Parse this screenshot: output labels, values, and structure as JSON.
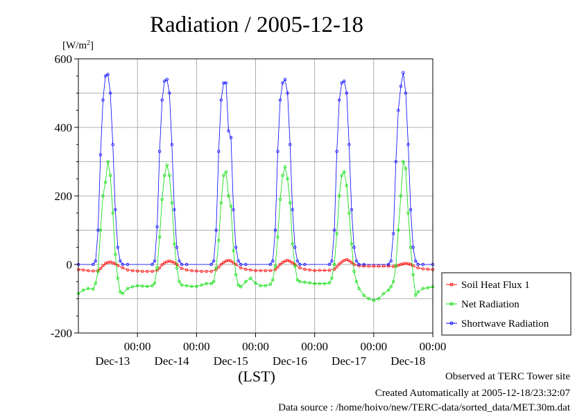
{
  "chart_data": {
    "type": "line",
    "title": "Radiation / 2005-12-18",
    "ylabel": "[W/m2]",
    "ylabel_base": "[W/m",
    "ylabel_sup": "2",
    "ylabel_end": "]",
    "xlabel": "(LST)",
    "ylim": [
      -200,
      600
    ],
    "xlim": [
      0,
      144
    ],
    "yticks": [
      {
        "value": -200,
        "label": "-200"
      },
      {
        "value": 0,
        "label": "0"
      },
      {
        "value": 200,
        "label": "200"
      },
      {
        "value": 400,
        "label": "400"
      },
      {
        "value": 600,
        "label": "600"
      }
    ],
    "xticks": [
      {
        "hour": 24,
        "time": "00:00",
        "date": "Dec-13"
      },
      {
        "hour": 48,
        "time": "00:00",
        "date": "Dec-14"
      },
      {
        "hour": 72,
        "time": "00:00",
        "date": "Dec-15"
      },
      {
        "hour": 96,
        "time": "00:00",
        "date": "Dec-16"
      },
      {
        "hour": 120,
        "time": "00:00",
        "date": "Dec-17"
      },
      {
        "hour": 144,
        "time": "00:00",
        "date": "Dec-18"
      }
    ],
    "grid": true,
    "legend_position": "right",
    "series": [
      {
        "name": "Soil Heat Flux 1",
        "color": "#ff0000",
        "x": [
          0,
          2,
          4,
          6,
          8,
          9,
          10,
          11,
          12,
          13,
          14,
          15,
          16,
          18,
          20,
          22,
          24,
          26,
          28,
          30,
          32,
          33,
          34,
          35,
          36,
          37,
          38,
          39,
          40,
          42,
          44,
          46,
          48,
          50,
          52,
          54,
          56,
          57,
          58,
          59,
          60,
          61,
          62,
          63,
          64,
          66,
          68,
          70,
          72,
          74,
          76,
          78,
          80,
          81,
          82,
          83,
          84,
          85,
          86,
          87,
          88,
          90,
          92,
          94,
          96,
          98,
          100,
          102,
          104,
          105,
          106,
          107,
          108,
          109,
          110,
          111,
          112,
          114,
          116,
          118,
          120,
          122,
          124,
          126,
          128,
          129,
          130,
          131,
          132,
          133,
          134,
          135,
          136,
          138,
          140,
          142,
          144
        ],
        "y": [
          -15,
          -16,
          -18,
          -19,
          -18,
          -12,
          -4,
          3,
          6,
          7,
          5,
          2,
          -3,
          -10,
          -16,
          -18,
          -19,
          -20,
          -20,
          -20,
          -17,
          -10,
          -1,
          5,
          8,
          10,
          8,
          5,
          0,
          -12,
          -16,
          -18,
          -19,
          -20,
          -20,
          -20,
          -15,
          -8,
          0,
          6,
          10,
          12,
          10,
          5,
          0,
          -10,
          -14,
          -16,
          -18,
          -18,
          -18,
          -18,
          -15,
          -8,
          0,
          6,
          10,
          12,
          9,
          5,
          0,
          -10,
          -14,
          -16,
          -18,
          -17,
          -17,
          -17,
          -14,
          -7,
          1,
          7,
          12,
          14,
          11,
          6,
          0,
          -4,
          -5,
          -5,
          -5,
          -5,
          -5,
          -5,
          -6,
          -5,
          -3,
          0,
          2,
          3,
          2,
          0,
          -4,
          -10,
          -13,
          -14,
          -15
        ]
      },
      {
        "name": "Net Radiation",
        "color": "#00dd00",
        "x": [
          0,
          2,
          4,
          6,
          7,
          8,
          9,
          10,
          11,
          12,
          13,
          14,
          15,
          16,
          17,
          18,
          20,
          22,
          24,
          26,
          28,
          30,
          31,
          32,
          33,
          34,
          35,
          36,
          37,
          38,
          39,
          40,
          41,
          42,
          44,
          46,
          48,
          50,
          52,
          54,
          55,
          56,
          57,
          58,
          59,
          60,
          61,
          62,
          63,
          64,
          65,
          66,
          68,
          70,
          72,
          74,
          76,
          78,
          79,
          80,
          81,
          82,
          83,
          84,
          85,
          86,
          87,
          88,
          89,
          90,
          92,
          94,
          96,
          98,
          100,
          102,
          103,
          104,
          105,
          106,
          107,
          108,
          109,
          110,
          111,
          112,
          113,
          114,
          116,
          118,
          120,
          122,
          124,
          126,
          127,
          128,
          129,
          130,
          131,
          132,
          133,
          134,
          135,
          136,
          137,
          138,
          140,
          142,
          144
        ],
        "y": [
          -85,
          -75,
          -70,
          -72,
          -55,
          -20,
          100,
          200,
          240,
          300,
          260,
          150,
          30,
          -40,
          -80,
          -85,
          -70,
          -65,
          -62,
          -63,
          -64,
          -62,
          -55,
          -10,
          80,
          190,
          260,
          290,
          260,
          180,
          60,
          -10,
          -50,
          -60,
          -62,
          -64,
          -64,
          -60,
          -56,
          -56,
          -50,
          -10,
          70,
          180,
          260,
          270,
          200,
          170,
          40,
          -30,
          -60,
          -65,
          -50,
          -40,
          -55,
          -62,
          -62,
          -58,
          -45,
          -5,
          80,
          190,
          260,
          285,
          250,
          180,
          60,
          -5,
          -45,
          -50,
          -52,
          -54,
          -56,
          -56,
          -56,
          -54,
          -40,
          0,
          90,
          200,
          260,
          270,
          230,
          150,
          60,
          -20,
          -50,
          -70,
          -90,
          -100,
          -105,
          -100,
          -85,
          -75,
          -65,
          -50,
          -5,
          100,
          200,
          300,
          280,
          150,
          50,
          -30,
          -90,
          -80,
          -70,
          -68,
          -65
        ]
      },
      {
        "name": "Shortwave Radiation",
        "color": "#0000ff",
        "x": [
          0,
          6,
          7,
          8,
          9,
          10,
          11,
          12,
          13,
          14,
          15,
          16,
          17,
          18,
          20,
          30,
          31,
          32,
          33,
          34,
          35,
          36,
          37,
          38,
          39,
          40,
          41,
          42,
          44,
          54,
          55,
          56,
          57,
          58,
          59,
          60,
          61,
          62,
          63,
          64,
          65,
          66,
          68,
          78,
          79,
          80,
          81,
          82,
          83,
          84,
          85,
          86,
          87,
          88,
          89,
          90,
          92,
          102,
          103,
          104,
          105,
          106,
          107,
          108,
          109,
          110,
          111,
          112,
          113,
          114,
          116,
          126,
          127,
          128,
          129,
          130,
          131,
          132,
          133,
          134,
          135,
          136,
          137,
          138,
          140,
          144
        ],
        "y": [
          0,
          0,
          10,
          100,
          320,
          480,
          550,
          555,
          500,
          350,
          160,
          50,
          10,
          0,
          0,
          0,
          10,
          110,
          330,
          480,
          535,
          540,
          500,
          350,
          160,
          50,
          10,
          0,
          0,
          0,
          10,
          100,
          330,
          480,
          530,
          530,
          390,
          370,
          160,
          50,
          10,
          0,
          0,
          0,
          10,
          100,
          330,
          480,
          530,
          540,
          500,
          350,
          160,
          50,
          10,
          0,
          0,
          0,
          10,
          100,
          330,
          480,
          530,
          535,
          500,
          350,
          160,
          50,
          10,
          0,
          0,
          0,
          10,
          90,
          300,
          450,
          520,
          560,
          500,
          350,
          160,
          50,
          10,
          0,
          0,
          0
        ]
      }
    ]
  },
  "footer": {
    "line1": "Observed at TERC Tower site",
    "line2": "Created Automatically at 2005-12-18/23:32:07",
    "line3": "Data source : /home/hoivo/new/TERC-data/sorted_data/MET.30m.dat"
  }
}
